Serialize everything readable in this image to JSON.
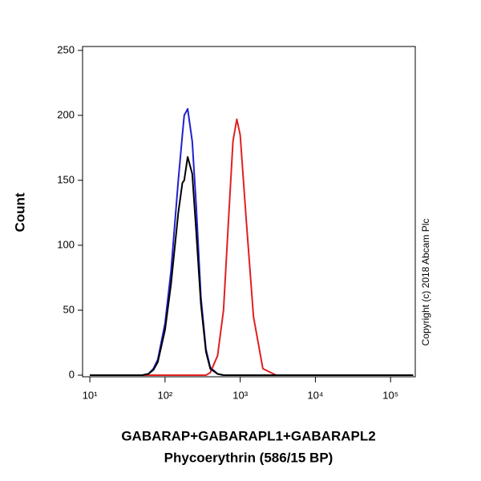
{
  "chart_data": {
    "type": "line",
    "ylabel": "Count",
    "xlabel": [
      "GABARAP+GABARAPL1+GABARAPL2",
      "Phycoerythrin (586/15 BP)"
    ],
    "annotation": "Copyright (c) 2018 Abcam Plc",
    "xscale": "log",
    "xlim": [
      8,
      213000
    ],
    "ylim": [
      0,
      253
    ],
    "xticks": [
      {
        "value": 10,
        "label": "10¹"
      },
      {
        "value": 100,
        "label": "10²"
      },
      {
        "value": 1000,
        "label": "10³"
      },
      {
        "value": 10000,
        "label": "10⁴"
      },
      {
        "value": 100000,
        "label": "10⁵"
      }
    ],
    "yticks": [
      0,
      50,
      100,
      150,
      200,
      250
    ],
    "x": [
      10,
      50,
      60,
      70,
      80,
      100,
      120,
      150,
      170,
      180,
      200,
      230,
      260,
      300,
      350,
      400,
      500,
      600,
      700,
      800,
      900,
      1000,
      1200,
      1500,
      2000,
      3000,
      200000
    ],
    "series": [
      {
        "color": "#2020d0",
        "values": [
          0,
          0,
          1,
          5,
          12,
          40,
          80,
          150,
          185,
          200,
          205,
          180,
          130,
          60,
          20,
          6,
          1,
          0,
          0,
          0,
          0,
          0,
          0,
          0,
          0,
          0,
          0
        ]
      },
      {
        "color": "#e02020",
        "values": [
          0,
          0,
          0,
          0,
          0,
          0,
          0,
          0,
          0,
          0,
          0,
          0,
          0,
          0,
          0,
          2,
          15,
          50,
          120,
          180,
          197,
          185,
          120,
          45,
          5,
          0,
          0
        ]
      },
      {
        "color": "#000000",
        "values": [
          0,
          0,
          1,
          4,
          10,
          35,
          70,
          125,
          148,
          150,
          168,
          155,
          110,
          55,
          18,
          5,
          1,
          0,
          0,
          0,
          0,
          0,
          0,
          0,
          0,
          0,
          0
        ]
      }
    ]
  }
}
